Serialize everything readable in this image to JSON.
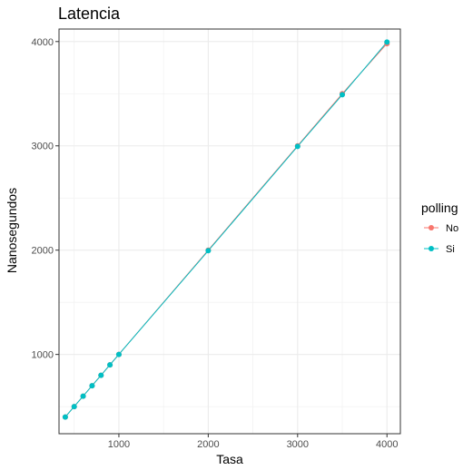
{
  "chart_data": {
    "type": "line",
    "title": "Latencia",
    "xlabel": "Tasa",
    "ylabel": "Nanosegundos",
    "xlim": [
      330,
      4150
    ],
    "ylim": [
      240,
      4120
    ],
    "x_ticks": [
      1000,
      2000,
      3000,
      4000
    ],
    "y_ticks": [
      1000,
      2000,
      3000,
      4000
    ],
    "grid": true,
    "legend": {
      "title": "polling",
      "position": "right"
    },
    "x": [
      400,
      500,
      600,
      700,
      800,
      900,
      1000,
      2000,
      3000,
      3500,
      4000
    ],
    "series": [
      {
        "name": "No",
        "color": "#F8766D",
        "values": [
          400,
          500,
          600,
          700,
          800,
          900,
          1000,
          2000,
          3000,
          3500,
          3980
        ]
      },
      {
        "name": "Si",
        "color": "#00BFC4",
        "values": [
          400,
          500,
          600,
          700,
          800,
          900,
          1000,
          1995,
          2995,
          3490,
          3995
        ]
      }
    ]
  }
}
